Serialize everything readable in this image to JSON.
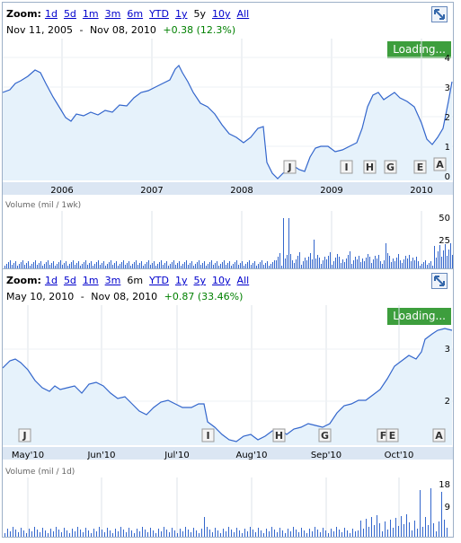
{
  "chart1": {
    "zoom_label": "Zoom:",
    "zoom_options": [
      "1d",
      "5d",
      "1m",
      "3m",
      "6m",
      "YTD",
      "1y",
      "5y",
      "10y",
      "All"
    ],
    "zoom_selected": "5y",
    "date_from": "Nov 11, 2005",
    "date_sep": "-",
    "date_to": "Nov 08, 2010",
    "change": "+0.38 (12.3%)",
    "loading": "Loading...",
    "volume_label": "Volume (mil / 1wk)",
    "chart_data": {
      "type": "area",
      "x": [
        "2006",
        "2007",
        "2008",
        "2009",
        "2010"
      ],
      "price_axis": [
        "4",
        "3",
        "2",
        "1",
        "0"
      ],
      "volume_axis": [
        "50",
        "25"
      ],
      "markers": [
        "J",
        "I",
        "H",
        "G",
        "E",
        "A"
      ],
      "accent_color": "#3366cc",
      "fill_color": "#e6f2fb"
    }
  },
  "chart2": {
    "zoom_label": "Zoom:",
    "zoom_options": [
      "1d",
      "5d",
      "1m",
      "3m",
      "6m",
      "YTD",
      "1y",
      "5y",
      "10y",
      "All"
    ],
    "zoom_selected": "6m",
    "date_from": "May 10, 2010",
    "date_sep": "-",
    "date_to": "Nov 08, 2010",
    "change": "+0.87 (33.46%)",
    "loading": "Loading...",
    "volume_label": "Volume (mil / 1d)",
    "chart_data": {
      "type": "area",
      "x": [
        "May'10",
        "Jun'10",
        "Jul'10",
        "Aug'10",
        "Sep'10",
        "Oct'10"
      ],
      "price_axis": [
        "3",
        "2"
      ],
      "volume_axis": [
        "18",
        "9"
      ],
      "markers": [
        "J",
        "I",
        "H",
        "G",
        "F",
        "E",
        "A"
      ],
      "accent_color": "#3366cc",
      "fill_color": "#e6f2fb"
    }
  }
}
